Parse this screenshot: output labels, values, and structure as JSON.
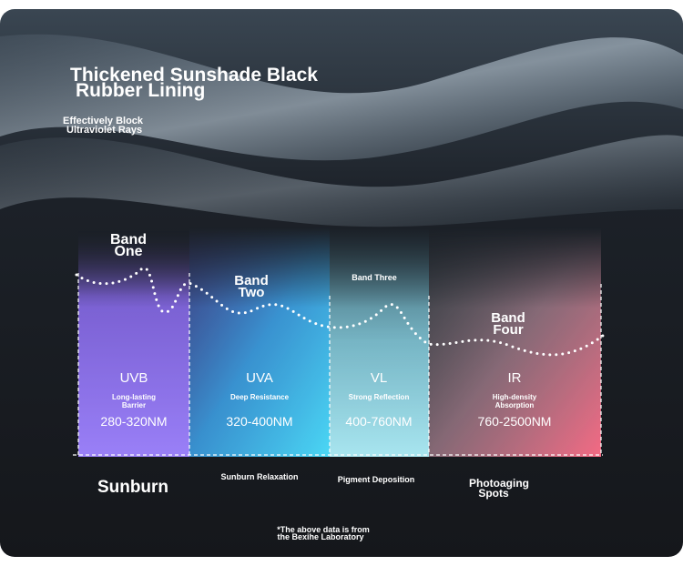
{
  "title": [
    "Thickened Sunshade Black",
    "Rubber Lining"
  ],
  "subtitle": [
    "Effectively Block",
    "Ultraviolet Rays"
  ],
  "bands": [
    {
      "label": [
        "Band",
        "One"
      ],
      "name": "UVB",
      "feature": [
        "Long-lasting",
        "Barrier"
      ],
      "range": "280-320NM",
      "effect": [
        "Sunburn"
      ]
    },
    {
      "label": [
        "Band",
        "Two"
      ],
      "name": "UVA",
      "feature": [
        "Deep Resistance"
      ],
      "range": "320-400NM",
      "effect": [
        "Sunburn Relaxation"
      ]
    },
    {
      "label": [
        "Band Three"
      ],
      "name": "VL",
      "feature": [
        "Strong Reflection"
      ],
      "range": "400-760NM",
      "effect": [
        "Pigment Deposition"
      ]
    },
    {
      "label": [
        "Band",
        "Four"
      ],
      "name": "IR",
      "feature": [
        "High-density",
        "Absorption"
      ],
      "range": "760-2500NM",
      "effect": [
        "Photoaging",
        "Spots"
      ]
    }
  ],
  "footnote": [
    "*The above data is from",
    "the Bexihe Laboratory"
  ]
}
